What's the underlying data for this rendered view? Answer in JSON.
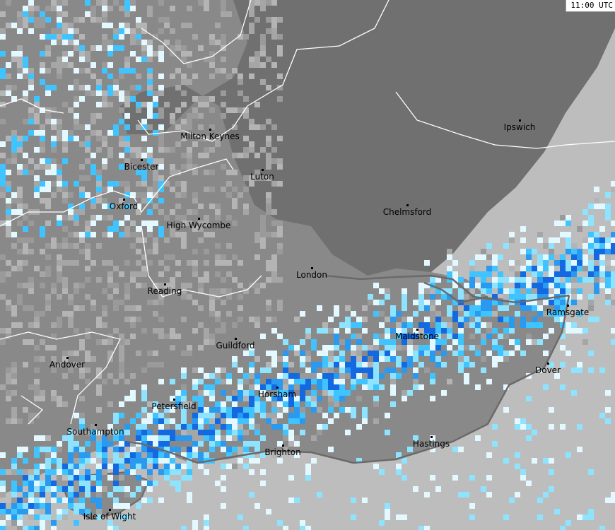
{
  "timestamp": "11:00 UTC",
  "colors": {
    "sea": "#bdbdbd",
    "land": "#898989",
    "land_dark": "#707070",
    "border": "#ffffff",
    "coast": "#6a6a6a",
    "rain_levels": [
      "#e4f8ff",
      "#8ee4ff",
      "#40c4ff",
      "#2a9af0",
      "#1468e0"
    ],
    "clutter": [
      "#a6a6a6",
      "#9a9a9a",
      "#b4b4b4"
    ]
  },
  "cities": [
    {
      "name": "Ipswich",
      "dot": [
        735,
        170
      ]
    },
    {
      "name": "Milton Keynes",
      "dot": [
        297,
        183
      ]
    },
    {
      "name": "Bicester",
      "dot": [
        200,
        226
      ]
    },
    {
      "name": "Luton",
      "dot": [
        371,
        240
      ]
    },
    {
      "name": "Oxford",
      "dot": [
        175,
        282
      ]
    },
    {
      "name": "High Wycombe",
      "dot": [
        281,
        309
      ]
    },
    {
      "name": "Chelmsford",
      "dot": [
        576,
        290
      ]
    },
    {
      "name": "London",
      "dot": [
        441,
        379
      ]
    },
    {
      "name": "Reading",
      "dot": [
        233,
        402
      ]
    },
    {
      "name": "Ramsgate",
      "dot": [
        803,
        432
      ]
    },
    {
      "name": "Maidstone",
      "dot": [
        590,
        466
      ]
    },
    {
      "name": "Guildford",
      "dot": [
        333,
        479
      ]
    },
    {
      "name": "Andover",
      "dot": [
        95,
        506
      ]
    },
    {
      "name": "Dover",
      "dot": [
        775,
        514
      ]
    },
    {
      "name": "Horsham",
      "dot": [
        392,
        548
      ]
    },
    {
      "name": "Petersfield",
      "dot": [
        246,
        565
      ]
    },
    {
      "name": "Southampton",
      "dot": [
        135,
        601
      ]
    },
    {
      "name": "Brighton",
      "dot": [
        400,
        630
      ]
    },
    {
      "name": "Hastings",
      "dot": [
        610,
        618
      ]
    },
    {
      "name": "Isle of Wight",
      "dot": [
        155,
        721
      ]
    }
  ]
}
